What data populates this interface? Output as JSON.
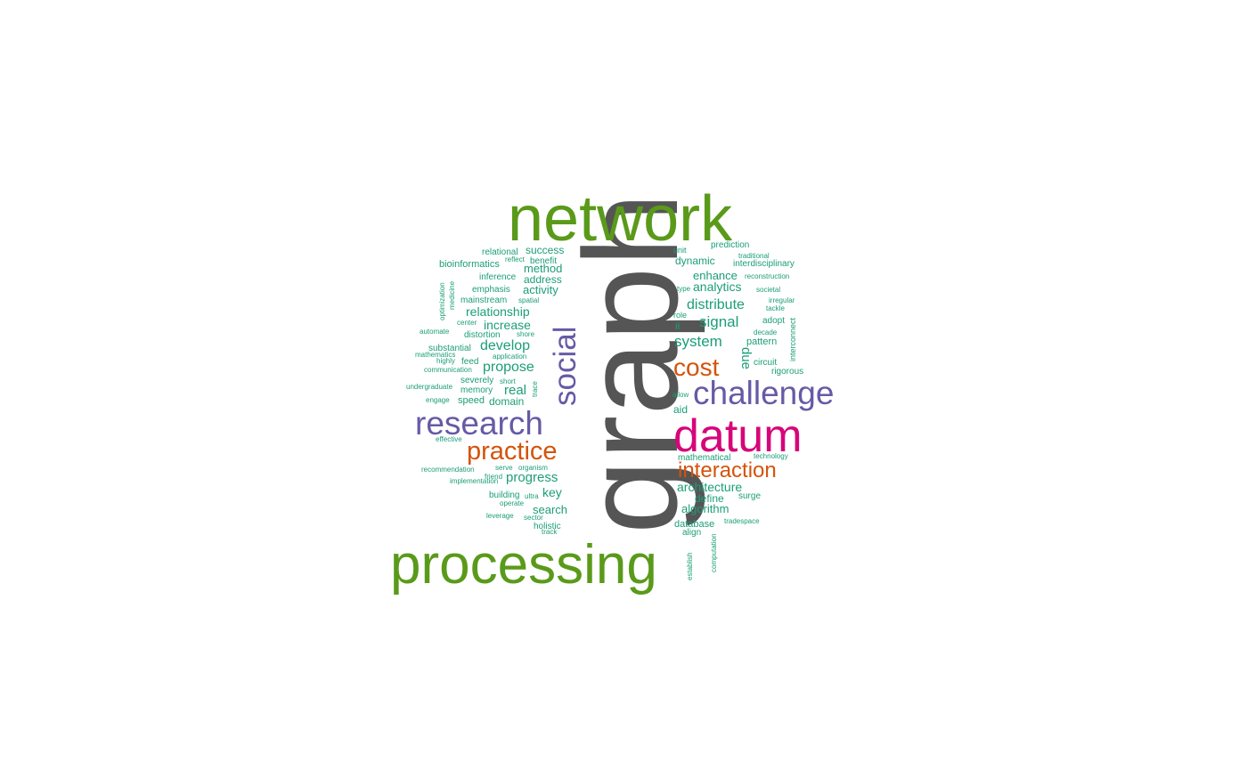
{
  "colors": {
    "teal": "#1b9e77",
    "green": "#5a9a1a",
    "gray": "#555555",
    "magenta": "#d6067a",
    "purple": "#675aa6",
    "orange": "#d4530b"
  },
  "words": [
    {
      "text": "graph",
      "color": "gray"
    },
    {
      "text": "network",
      "color": "green"
    },
    {
      "text": "processing",
      "color": "green"
    },
    {
      "text": "datum",
      "color": "magenta"
    },
    {
      "text": "research",
      "color": "purple"
    },
    {
      "text": "challenge",
      "color": "purple"
    },
    {
      "text": "social",
      "color": "purple"
    },
    {
      "text": "practice",
      "color": "orange"
    },
    {
      "text": "cost",
      "color": "orange"
    },
    {
      "text": "interaction",
      "color": "orange"
    },
    {
      "text": "develop",
      "color": "teal"
    },
    {
      "text": "propose",
      "color": "teal"
    },
    {
      "text": "system",
      "color": "teal"
    },
    {
      "text": "signal",
      "color": "teal"
    },
    {
      "text": "distribute",
      "color": "teal"
    },
    {
      "text": "analytics",
      "color": "teal"
    },
    {
      "text": "progress",
      "color": "teal"
    },
    {
      "text": "real",
      "color": "teal"
    },
    {
      "text": "relationship",
      "color": "teal"
    },
    {
      "text": "increase",
      "color": "teal"
    },
    {
      "text": "architecture",
      "color": "teal"
    },
    {
      "text": "key",
      "color": "teal"
    },
    {
      "text": "activity",
      "color": "teal"
    },
    {
      "text": "enhance",
      "color": "teal"
    },
    {
      "text": "dynamic",
      "color": "teal"
    },
    {
      "text": "method",
      "color": "teal"
    },
    {
      "text": "address",
      "color": "teal"
    },
    {
      "text": "success",
      "color": "teal"
    },
    {
      "text": "search",
      "color": "teal"
    },
    {
      "text": "algorithm",
      "color": "teal"
    },
    {
      "text": "define",
      "color": "teal"
    },
    {
      "text": "domain",
      "color": "teal"
    },
    {
      "text": "due",
      "color": "teal"
    },
    {
      "text": "pattern",
      "color": "teal"
    },
    {
      "text": "aid",
      "color": "teal"
    },
    {
      "text": "ii",
      "color": "teal"
    },
    {
      "text": "relational",
      "color": "teal"
    },
    {
      "text": "benefit",
      "color": "teal"
    },
    {
      "text": "bioinformatics",
      "color": "teal"
    },
    {
      "text": "inference",
      "color": "teal"
    },
    {
      "text": "emphasis",
      "color": "teal"
    },
    {
      "text": "mainstream",
      "color": "teal"
    },
    {
      "text": "distortion",
      "color": "teal"
    },
    {
      "text": "substantial",
      "color": "teal"
    },
    {
      "text": "feed",
      "color": "teal"
    },
    {
      "text": "severely",
      "color": "teal"
    },
    {
      "text": "memory",
      "color": "teal"
    },
    {
      "text": "speed",
      "color": "teal"
    },
    {
      "text": "holistic",
      "color": "teal"
    },
    {
      "text": "building",
      "color": "teal"
    },
    {
      "text": "database",
      "color": "teal"
    },
    {
      "text": "align",
      "color": "teal"
    },
    {
      "text": "mathematical",
      "color": "teal"
    },
    {
      "text": "adopt",
      "color": "teal"
    },
    {
      "text": "rigorous",
      "color": "teal"
    },
    {
      "text": "circuit",
      "color": "teal"
    },
    {
      "text": "role",
      "color": "teal"
    },
    {
      "text": "unit",
      "color": "teal"
    },
    {
      "text": "prediction",
      "color": "teal"
    },
    {
      "text": "interdisciplinary",
      "color": "teal"
    },
    {
      "text": "surge",
      "color": "teal"
    },
    {
      "text": "friend",
      "color": "teal"
    },
    {
      "text": "reflect",
      "color": "teal"
    },
    {
      "text": "spatial",
      "color": "teal"
    },
    {
      "text": "shore",
      "color": "teal"
    },
    {
      "text": "application",
      "color": "teal"
    },
    {
      "text": "short",
      "color": "teal"
    },
    {
      "text": "center",
      "color": "teal"
    },
    {
      "text": "automate",
      "color": "teal"
    },
    {
      "text": "mathematics",
      "color": "teal"
    },
    {
      "text": "highly",
      "color": "teal"
    },
    {
      "text": "communication",
      "color": "teal"
    },
    {
      "text": "undergraduate",
      "color": "teal"
    },
    {
      "text": "engage",
      "color": "teal"
    },
    {
      "text": "effective",
      "color": "teal"
    },
    {
      "text": "recommendation",
      "color": "teal"
    },
    {
      "text": "serve",
      "color": "teal"
    },
    {
      "text": "organism",
      "color": "teal"
    },
    {
      "text": "implementation",
      "color": "teal"
    },
    {
      "text": "ultra",
      "color": "teal"
    },
    {
      "text": "operate",
      "color": "teal"
    },
    {
      "text": "leverage",
      "color": "teal"
    },
    {
      "text": "sector",
      "color": "teal"
    },
    {
      "text": "track",
      "color": "teal"
    },
    {
      "text": "optimization",
      "color": "teal"
    },
    {
      "text": "medicine",
      "color": "teal"
    },
    {
      "text": "trace",
      "color": "teal"
    },
    {
      "text": "traditional",
      "color": "teal"
    },
    {
      "text": "reconstruction",
      "color": "teal"
    },
    {
      "text": "type",
      "color": "teal"
    },
    {
      "text": "societal",
      "color": "teal"
    },
    {
      "text": "irregular",
      "color": "teal"
    },
    {
      "text": "tackle",
      "color": "teal"
    },
    {
      "text": "decade",
      "color": "teal"
    },
    {
      "text": "interconnect",
      "color": "teal"
    },
    {
      "text": "allow",
      "color": "teal"
    },
    {
      "text": "technology",
      "color": "teal"
    },
    {
      "text": "tradespace",
      "color": "teal"
    },
    {
      "text": "computation",
      "color": "teal"
    },
    {
      "text": "establish",
      "color": "teal"
    }
  ]
}
